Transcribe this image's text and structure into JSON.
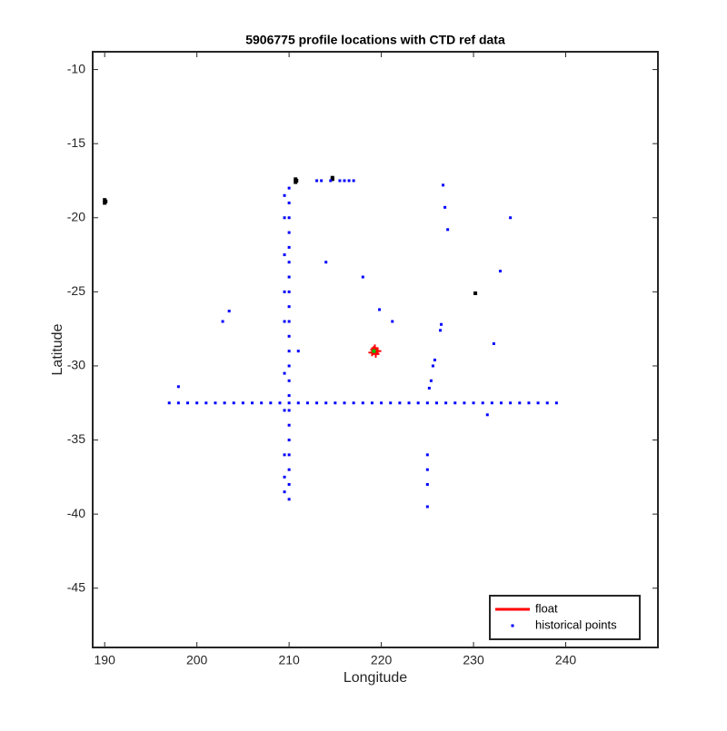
{
  "chart_data": {
    "type": "scatter",
    "title": "5906775 profile locations with CTD ref data",
    "xlabel": "Longitude",
    "ylabel": "Latitude",
    "xlim": [
      188.7,
      250
    ],
    "ylim": [
      -49,
      -8.8
    ],
    "xticks": [
      190,
      200,
      210,
      220,
      230,
      240
    ],
    "yticks": [
      -10,
      -15,
      -20,
      -25,
      -30,
      -35,
      -40,
      -45
    ],
    "legend": "lower right",
    "series": [
      {
        "color": "#000000",
        "style": "dots",
        "x": [
          190,
          190,
          190.1,
          210.7,
          210.7,
          210.8,
          214.7,
          214.7,
          230.2
        ],
        "values": [
          -18.8,
          -19,
          -18.9,
          -17.6,
          -17.4,
          -17.5,
          -17.4,
          -17.3,
          -25.1
        ]
      },
      {
        "name": "historical points",
        "color": "#0000ff",
        "style": "dots",
        "x": [
          197,
          198,
          199,
          200,
          201,
          202,
          203,
          204,
          205,
          206,
          207,
          208,
          209,
          210,
          211,
          212,
          213,
          214,
          215,
          216,
          217,
          218,
          219,
          220,
          221,
          222,
          223,
          224,
          225,
          226,
          227,
          228,
          229,
          230,
          231,
          232,
          233,
          234,
          235,
          236,
          237,
          238,
          239,
          210,
          210,
          210,
          210,
          210,
          210,
          210,
          210,
          210,
          210,
          210,
          210,
          210,
          210,
          210,
          210,
          210,
          210,
          210,
          210,
          210,
          210,
          209.5,
          209.5,
          209.5,
          209.5,
          209.5,
          209.5,
          209.5,
          209.5,
          209.5,
          209.5,
          213,
          213.5,
          214.5,
          215.5,
          216,
          216.5,
          217,
          198,
          202.8,
          203.5,
          211,
          214,
          218,
          219.8,
          221.2,
          226.7,
          226.9,
          227.2,
          234,
          232.9,
          232.2,
          231.5,
          226.5,
          226.4,
          225.8,
          225.6,
          225.4,
          225.2,
          225,
          225,
          225,
          225
        ],
        "values": [
          -32.5,
          -32.5,
          -32.5,
          -32.5,
          -32.5,
          -32.5,
          -32.5,
          -32.5,
          -32.5,
          -32.5,
          -32.5,
          -32.5,
          -32.5,
          -32.5,
          -32.5,
          -32.5,
          -32.5,
          -32.5,
          -32.5,
          -32.5,
          -32.5,
          -32.5,
          -32.5,
          -32.5,
          -32.5,
          -32.5,
          -32.5,
          -32.5,
          -32.5,
          -32.5,
          -32.5,
          -32.5,
          -32.5,
          -32.5,
          -32.5,
          -32.5,
          -32.5,
          -32.5,
          -32.5,
          -32.5,
          -32.5,
          -32.5,
          -32.5,
          -18,
          -19,
          -20,
          -21,
          -22,
          -23,
          -24,
          -25,
          -26,
          -27,
          -28,
          -29,
          -30,
          -31,
          -32,
          -33,
          -34,
          -35,
          -36,
          -37,
          -38,
          -39,
          -18.5,
          -20,
          -22.5,
          -25,
          -27,
          -30.5,
          -33,
          -36,
          -37.5,
          -38.5,
          -17.5,
          -17.5,
          -17.5,
          -17.5,
          -17.5,
          -17.5,
          -17.5,
          -31.4,
          -27,
          -26.3,
          -29,
          -23,
          -24,
          -26.2,
          -27,
          -17.8,
          -19.3,
          -20.8,
          -20,
          -23.6,
          -28.5,
          -33.3,
          -27.2,
          -27.6,
          -29.6,
          -30,
          -31,
          -31.5,
          -36,
          -37,
          -38,
          -39.5
        ]
      },
      {
        "name": "float",
        "color": "#ff0000",
        "style": "line",
        "x": [
          219,
          219.3,
          219.6,
          219.2,
          219.4
        ],
        "values": [
          -29.1,
          -28.8,
          -29,
          -28.9,
          -29.2
        ]
      },
      {
        "color": "#00c000",
        "style": "dots",
        "x": [
          219.2
        ],
        "values": [
          -29
        ]
      }
    ]
  }
}
